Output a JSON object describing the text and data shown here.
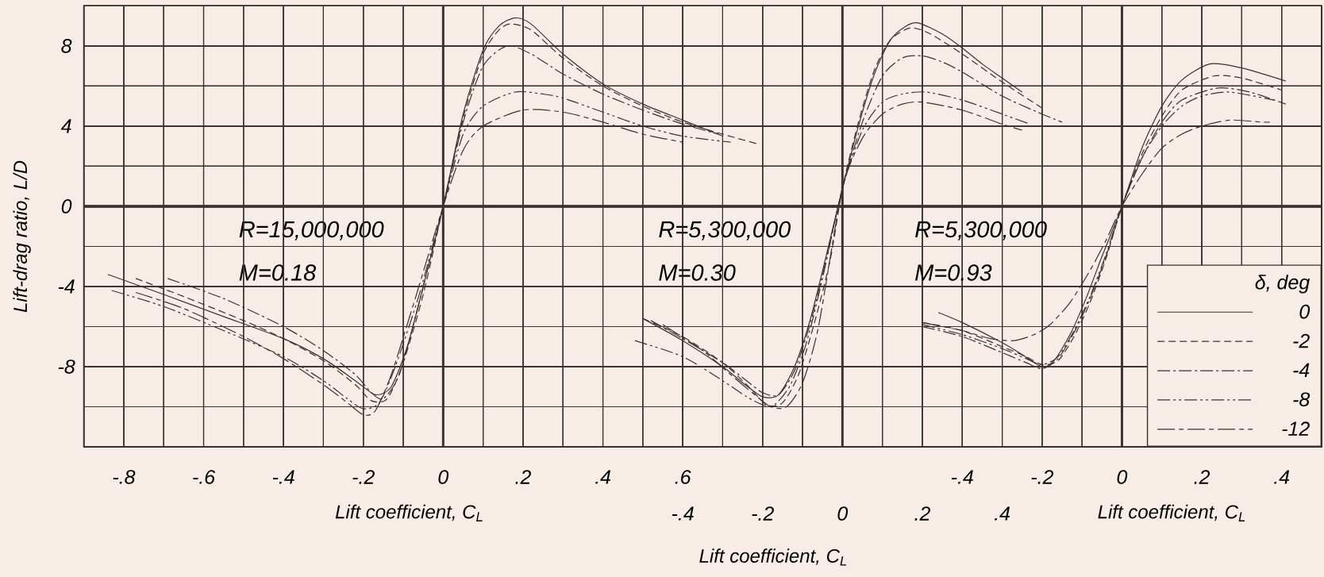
{
  "chart_data": [
    {
      "type": "line",
      "xlabel": "Lift coefficient, C$_{L}$",
      "ylabel": "Lift-drag ratio, L/D",
      "xlim": [
        -0.9,
        2.2
      ],
      "ylim": [
        -12,
        10
      ],
      "xticks": [
        {
          "value": -0.8,
          "label": "-.8"
        },
        {
          "value": -0.6,
          "label": "-.6"
        },
        {
          "value": -0.4,
          "label": "-.4"
        },
        {
          "value": -0.2,
          "label": "-.2"
        },
        0,
        {
          "value": 0.2,
          "label": ".2"
        },
        {
          "value": 0.4,
          "label": ".4"
        },
        {
          "value": 0.6,
          "label": ".6"
        }
      ],
      "yticks": [
        -8,
        -4,
        0,
        4,
        8
      ],
      "grid": true,
      "legend": false,
      "annotations": [
        "R=15,000,000",
        "M=0.18"
      ],
      "series": [
        {
          "color": "#3a3232",
          "line_style": "solid",
          "x": [
            -0.84,
            -0.7,
            -0.55,
            -0.4,
            -0.3,
            -0.22,
            -0.17,
            -0.13,
            -0.09,
            -0.05,
            0,
            0.05,
            0.1,
            0.14,
            0.18,
            0.22,
            0.3,
            0.4,
            0.5,
            0.6,
            0.7
          ],
          "values": [
            -3.4,
            -4.4,
            -5.5,
            -6.6,
            -7.6,
            -8.7,
            -9.4,
            -9.0,
            -7.0,
            -4.0,
            0,
            4.6,
            7.8,
            9.0,
            9.4,
            9.1,
            7.6,
            6.1,
            5.1,
            4.3,
            3.5
          ]
        },
        {
          "color": "#3a3232",
          "line_style": "dashed",
          "x": [
            -0.77,
            -0.65,
            -0.5,
            -0.4,
            -0.3,
            -0.22,
            -0.18,
            -0.14,
            -0.1,
            -0.05,
            0,
            0.05,
            0.1,
            0.14,
            0.17,
            0.22,
            0.3,
            0.4,
            0.5,
            0.6,
            0.7,
            0.79
          ],
          "values": [
            -3.6,
            -4.5,
            -5.7,
            -6.6,
            -7.7,
            -8.9,
            -9.7,
            -9.6,
            -7.8,
            -4.4,
            0,
            4.4,
            7.6,
            8.8,
            9.1,
            8.8,
            7.4,
            6.0,
            5.0,
            4.2,
            3.6,
            3.1
          ]
        },
        {
          "color": "#3a3232",
          "line_style": "dashdot",
          "x": [
            -0.69,
            -0.55,
            -0.4,
            -0.3,
            -0.22,
            -0.18,
            -0.15,
            -0.11,
            -0.06,
            0,
            0.05,
            0.1,
            0.16,
            0.22,
            0.3,
            0.4,
            0.5,
            0.6,
            0.69
          ],
          "values": [
            -3.6,
            -4.6,
            -6.0,
            -7.2,
            -8.4,
            -9.3,
            -9.6,
            -8.4,
            -4.8,
            0,
            4.2,
            7.0,
            8.0,
            7.6,
            6.6,
            5.6,
            4.8,
            4.1,
            3.6
          ]
        },
        {
          "color": "#3a3232",
          "line_style": "dashdotdot",
          "x": [
            -0.83,
            -0.7,
            -0.55,
            -0.4,
            -0.3,
            -0.24,
            -0.2,
            -0.16,
            -0.12,
            -0.06,
            0,
            0.05,
            0.1,
            0.18,
            0.25,
            0.3,
            0.4,
            0.5,
            0.6,
            0.72
          ],
          "values": [
            -4.2,
            -5.0,
            -6.2,
            -7.5,
            -8.7,
            -9.6,
            -10.1,
            -9.8,
            -8.0,
            -4.4,
            0,
            3.6,
            5.0,
            5.7,
            5.6,
            5.4,
            4.7,
            4.0,
            3.5,
            3.2
          ]
        },
        {
          "color": "#3a3232",
          "line_style": "longdashed",
          "x": [
            -0.77,
            -0.65,
            -0.5,
            -0.4,
            -0.3,
            -0.24,
            -0.2,
            -0.17,
            -0.13,
            -0.07,
            0,
            0.05,
            0.1,
            0.2,
            0.3,
            0.4,
            0.5,
            0.6
          ],
          "values": [
            -4.3,
            -5.1,
            -6.5,
            -7.6,
            -8.9,
            -9.8,
            -10.4,
            -10.2,
            -8.4,
            -4.6,
            0,
            2.8,
            4.0,
            4.8,
            4.7,
            4.2,
            3.6,
            3.2
          ]
        }
      ]
    },
    {
      "type": "line",
      "xlabel": "Lift coefficient, C$_{L}$",
      "xlim": [
        -1.9,
        1.2
      ],
      "ylim": [
        -12,
        10
      ],
      "tick_labels": "x",
      "xticks": [
        {
          "value": -0.4,
          "label": "-.4"
        },
        {
          "value": -0.2,
          "label": "-.2"
        },
        0,
        {
          "value": 0.2,
          "label": ".2"
        },
        {
          "value": 0.4,
          "label": ".4"
        }
      ],
      "yticks": [
        -8,
        -4,
        0,
        4,
        8
      ],
      "grid": true,
      "legend": false,
      "annotations": [
        "R=5,300,000",
        "M=0.30"
      ],
      "series": [
        {
          "color": "#3a3232",
          "line_style": "solid",
          "x": [
            -0.5,
            -0.4,
            -0.3,
            -0.25,
            -0.2,
            -0.16,
            -0.12,
            -0.08,
            -0.04,
            0,
            0.04,
            0.08,
            0.12,
            0.16,
            0.19,
            0.25,
            0.3,
            0.35,
            0.4,
            0.45
          ],
          "values": [
            -5.6,
            -6.7,
            -8.0,
            -8.8,
            -9.5,
            -9.4,
            -8.0,
            -5.6,
            -2.4,
            0.9,
            4.0,
            6.6,
            8.3,
            9.0,
            9.15,
            8.6,
            7.9,
            7.1,
            6.4,
            5.7
          ]
        },
        {
          "color": "#3a3232",
          "line_style": "dashed",
          "x": [
            -0.5,
            -0.4,
            -0.3,
            -0.24,
            -0.19,
            -0.15,
            -0.11,
            -0.07,
            -0.03,
            0,
            0.04,
            0.08,
            0.12,
            0.17,
            0.22,
            0.3,
            0.4,
            0.5
          ],
          "values": [
            -5.6,
            -6.5,
            -7.8,
            -8.9,
            -9.9,
            -9.8,
            -8.4,
            -5.8,
            -2.6,
            0.9,
            4.2,
            6.8,
            8.3,
            8.9,
            8.6,
            7.6,
            6.2,
            4.9
          ]
        },
        {
          "color": "#3a3232",
          "line_style": "dashdot",
          "x": [
            -0.48,
            -0.4,
            -0.3,
            -0.24,
            -0.2,
            -0.16,
            -0.12,
            -0.08,
            -0.04,
            0,
            0.05,
            0.1,
            0.15,
            0.2,
            0.25,
            0.3,
            0.4,
            0.5,
            0.55
          ],
          "values": [
            -5.7,
            -6.6,
            -7.8,
            -8.7,
            -9.3,
            -9.4,
            -8.2,
            -5.8,
            -2.6,
            0.9,
            4.2,
            6.5,
            7.4,
            7.5,
            7.2,
            6.7,
            5.5,
            4.6,
            4.2
          ]
        },
        {
          "color": "#3a3232",
          "line_style": "dashdotdot",
          "x": [
            -0.52,
            -0.4,
            -0.3,
            -0.24,
            -0.2,
            -0.17,
            -0.13,
            -0.09,
            -0.05,
            0,
            0.05,
            0.1,
            0.15,
            0.21,
            0.3,
            0.4,
            0.47
          ],
          "values": [
            -6.7,
            -7.5,
            -8.7,
            -9.5,
            -9.9,
            -9.9,
            -8.9,
            -6.8,
            -3.6,
            0.9,
            3.8,
            5.2,
            5.6,
            5.7,
            5.3,
            4.6,
            4.1
          ]
        },
        {
          "color": "#3a3232",
          "line_style": "longdashed",
          "x": [
            -0.45,
            -0.35,
            -0.28,
            -0.22,
            -0.18,
            -0.14,
            -0.1,
            -0.06,
            0,
            0.05,
            0.1,
            0.15,
            0.2,
            0.3,
            0.4,
            0.45
          ],
          "values": [
            -5.9,
            -7.2,
            -8.4,
            -9.4,
            -10.0,
            -10.0,
            -8.8,
            -6.0,
            0.9,
            3.4,
            4.6,
            5.1,
            5.2,
            4.8,
            4.1,
            3.8
          ]
        }
      ]
    },
    {
      "type": "line",
      "xlabel": "Lift coefficient, C$_{L}$",
      "xlim": [
        -2.6,
        0.5
      ],
      "ylim": [
        -12,
        10
      ],
      "tick_labels": "x",
      "xticks": [
        {
          "value": -0.4,
          "label": "-.4"
        },
        {
          "value": -0.2,
          "label": "-.2"
        },
        0,
        {
          "value": 0.2,
          "label": ".2"
        },
        {
          "value": 0.4,
          "label": ".4"
        }
      ],
      "yticks": [
        -8,
        -4,
        0,
        4,
        8
      ],
      "grid": true,
      "legend": "bottom right",
      "legend_title": "δ, deg",
      "annotations": [
        "R=5,300,000",
        "M=0.93"
      ],
      "series": [
        {
          "name": "0",
          "color": "#3a3232",
          "line_style": "solid",
          "x": [
            -0.46,
            -0.4,
            -0.3,
            -0.25,
            -0.2,
            -0.17,
            -0.13,
            -0.09,
            -0.05,
            0,
            0.05,
            0.1,
            0.15,
            0.22,
            0.3,
            0.41
          ],
          "values": [
            -5.3,
            -5.8,
            -6.8,
            -7.4,
            -8.0,
            -7.7,
            -6.4,
            -4.6,
            -2.5,
            0,
            2.9,
            5.0,
            6.3,
            7.1,
            6.9,
            6.25
          ]
        },
        {
          "name": "-2",
          "color": "#3a3232",
          "line_style": "dashed",
          "x": [
            -0.5,
            -0.4,
            -0.3,
            -0.24,
            -0.2,
            -0.16,
            -0.12,
            -0.08,
            -0.04,
            0,
            0.05,
            0.1,
            0.15,
            0.23,
            0.3,
            0.4
          ],
          "values": [
            -5.8,
            -6.2,
            -7.0,
            -7.5,
            -7.9,
            -7.7,
            -6.5,
            -4.8,
            -2.6,
            0,
            2.6,
            4.5,
            5.8,
            6.5,
            6.4,
            5.8
          ]
        },
        {
          "name": "-4",
          "color": "#3a3232",
          "line_style": "dashdot",
          "x": [
            -0.5,
            -0.4,
            -0.3,
            -0.24,
            -0.2,
            -0.16,
            -0.12,
            -0.08,
            -0.04,
            0,
            0.05,
            0.1,
            0.15,
            0.24,
            0.32,
            0.41
          ],
          "values": [
            -6.0,
            -6.5,
            -7.3,
            -7.8,
            -8.1,
            -7.6,
            -6.3,
            -4.6,
            -2.5,
            0,
            2.4,
            4.2,
            5.3,
            5.9,
            5.7,
            5.1
          ]
        },
        {
          "name": "-8",
          "color": "#3a3232",
          "line_style": "dashdotdot",
          "x": [
            -0.5,
            -0.4,
            -0.3,
            -0.24,
            -0.2,
            -0.16,
            -0.12,
            -0.08,
            -0.04,
            0,
            0.05,
            0.1,
            0.15,
            0.2,
            0.27,
            0.38
          ],
          "values": [
            -5.9,
            -6.4,
            -7.1,
            -7.6,
            -7.9,
            -7.5,
            -6.2,
            -4.5,
            -2.4,
            0,
            2.4,
            4.0,
            5.0,
            5.5,
            5.7,
            5.3
          ]
        },
        {
          "name": "-12",
          "color": "#3a3232",
          "line_style": "longdashed",
          "x": [
            -0.5,
            -0.4,
            -0.33,
            -0.27,
            -0.22,
            -0.18,
            -0.13,
            -0.08,
            -0.04,
            0,
            0.05,
            0.1,
            0.15,
            0.2,
            0.27,
            0.35,
            0.37
          ],
          "values": [
            -5.8,
            -6.2,
            -6.6,
            -6.7,
            -6.4,
            -5.9,
            -4.8,
            -3.2,
            -1.7,
            0,
            1.6,
            2.9,
            3.6,
            4.0,
            4.3,
            4.2,
            4.2
          ]
        }
      ]
    }
  ]
}
